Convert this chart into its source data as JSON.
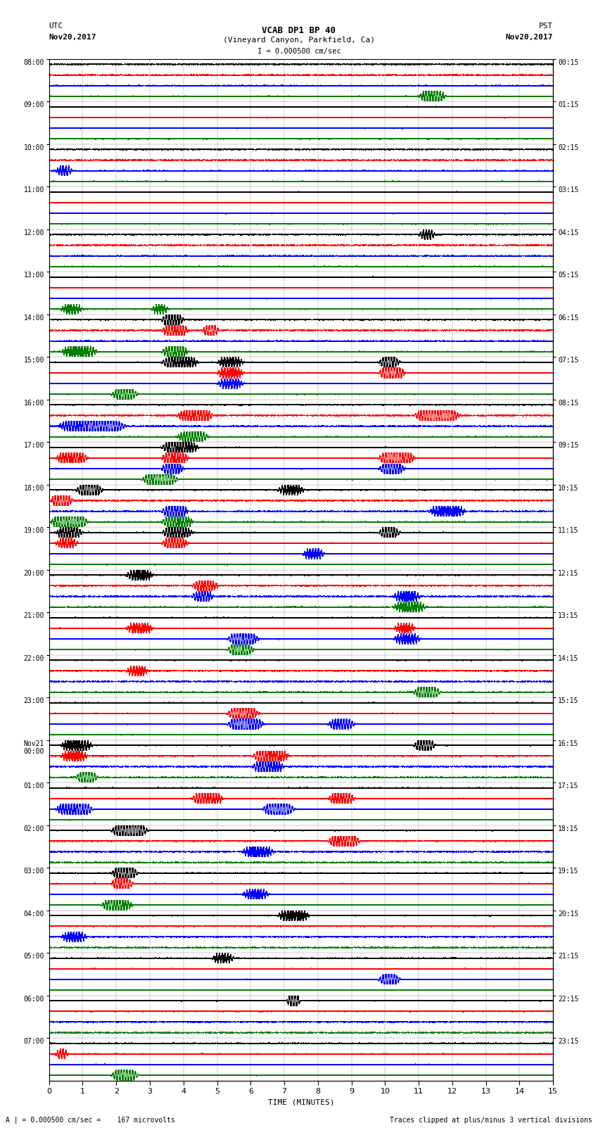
{
  "title_line1": "VCAB DP1 BP 40",
  "title_line2": "(Vineyard Canyon, Parkfield, Ca)",
  "scale_label": "I = 0.000500 cm/sec",
  "left_header": "UTC",
  "left_date": "Nov20,2017",
  "right_header": "PST",
  "right_date": "Nov20,2017",
  "xlabel": "TIME (MINUTES)",
  "footer_left": "A | = 0.000500 cm/sec =    167 microvolts",
  "footer_right": "Traces clipped at plus/minus 3 vertical divisions",
  "utc_labels": [
    "08:00",
    "09:00",
    "10:00",
    "11:00",
    "12:00",
    "13:00",
    "14:00",
    "15:00",
    "16:00",
    "17:00",
    "18:00",
    "19:00",
    "20:00",
    "21:00",
    "22:00",
    "23:00",
    "Nov21\n00:00",
    "01:00",
    "02:00",
    "03:00",
    "04:00",
    "05:00",
    "06:00",
    "07:00"
  ],
  "pst_labels": [
    "00:15",
    "01:15",
    "02:15",
    "03:15",
    "04:15",
    "05:15",
    "06:15",
    "07:15",
    "08:15",
    "09:15",
    "10:15",
    "11:15",
    "12:15",
    "13:15",
    "14:15",
    "15:15",
    "16:15",
    "17:15",
    "18:15",
    "19:15",
    "20:15",
    "21:15",
    "22:15",
    "23:15"
  ],
  "trace_colors": [
    "black",
    "red",
    "blue",
    "green"
  ],
  "n_hours": 24,
  "n_samples": 9000,
  "bg_color": "white",
  "fig_width": 8.5,
  "fig_height": 16.13,
  "xmin": 0,
  "xmax": 15,
  "label_fontsize": 7,
  "title_fontsize": 9,
  "footer_fontsize": 7
}
